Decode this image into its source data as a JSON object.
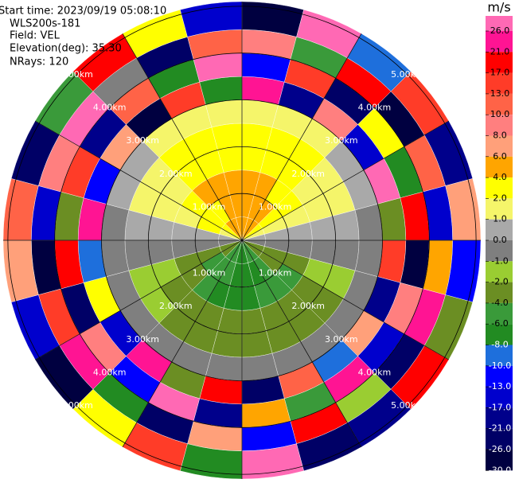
{
  "chart_data": {
    "type": "ppi",
    "annotations": [
      "Start time: 2023/09/19 05:08:10",
      "WLS200s-181",
      "Field: VEL",
      "Elevation(deg): 35.30",
      "NRays: 120"
    ],
    "colorbar_label": "m/s",
    "cticks": [
      {
        "value": 26,
        "label": "26.0"
      },
      {
        "value": 21,
        "label": "21.0"
      },
      {
        "value": 17,
        "label": "17.0"
      },
      {
        "value": 13,
        "label": "13.0"
      },
      {
        "value": 10,
        "label": "10.0"
      },
      {
        "value": 8,
        "label": "8.0"
      },
      {
        "value": 6,
        "label": "6.0"
      },
      {
        "value": 4,
        "label": "4.0"
      },
      {
        "value": 2,
        "label": "2.0"
      },
      {
        "value": 1,
        "label": "1.0"
      },
      {
        "value": 0,
        "label": "0.0"
      },
      {
        "value": -1,
        "label": "-1.0"
      },
      {
        "value": -2,
        "label": "-2.0"
      },
      {
        "value": -4,
        "label": "-4.0"
      },
      {
        "value": -6,
        "label": "-6.0"
      },
      {
        "value": -8,
        "label": "-8.0"
      },
      {
        "value": -10,
        "label": "-10.0"
      },
      {
        "value": -13,
        "label": "-13.0"
      },
      {
        "value": -17,
        "label": "-17.0"
      },
      {
        "value": -21,
        "label": "-21.0"
      },
      {
        "value": -26,
        "label": "-26.0"
      },
      {
        "value": -30,
        "label": "-30.0"
      }
    ],
    "colors": [
      "#ff69b4",
      "#ff1493",
      "#ff0000",
      "#ff3c28",
      "#ff6347",
      "#ff7f7f",
      "#ffa07a",
      "#ffa500",
      "#ffff00",
      "#f5f56a",
      "#a9a9a9",
      "#7f7f7f",
      "#9acd32",
      "#6b8e23",
      "#3a9a3a",
      "#228b22",
      "#1e6fdc",
      "#0000ff",
      "#0000cd",
      "#00008b",
      "#000066",
      "#000040"
    ],
    "rings": [
      {
        "value": 1,
        "label": "1.00km"
      },
      {
        "value": 2,
        "label": "2.00km"
      },
      {
        "value": 3,
        "label": "3.00km"
      },
      {
        "value": 4,
        "label": "4.00km"
      },
      {
        "value": 5,
        "label": "5.00km"
      }
    ],
    "azimuth_edges": [
      0,
      15,
      30,
      45,
      60,
      75,
      90,
      105,
      120,
      135,
      150,
      165,
      180,
      195,
      210,
      225,
      240,
      255,
      270,
      285,
      300,
      315,
      330,
      345,
      360
    ],
    "range_edges": [
      0,
      0.5,
      1,
      1.5,
      2,
      2.5,
      3,
      3.5,
      4,
      4.5,
      5.1
    ],
    "values": [
      [
        5,
        5.2,
        4.8,
        3.1,
        2.9,
        1.5,
        22,
        -12,
        8,
        -27
      ],
      [
        4.6,
        4.5,
        4.4,
        2.8,
        2.7,
        1.4,
        -18,
        14,
        -5,
        28
      ],
      [
        4,
        4.1,
        3.8,
        2.4,
        2.3,
        1.2,
        9,
        -24,
        19,
        -9
      ],
      [
        3,
        3.1,
        2.9,
        1.8,
        1.7,
        0.8,
        -14,
        3,
        -29,
        16
      ],
      [
        1.9,
        1.8,
        1.7,
        1.1,
        1.0,
        0.4,
        27,
        -7,
        11,
        -19
      ],
      [
        0.6,
        0.5,
        0.6,
        0.4,
        0.3,
        -0.2,
        -3,
        18,
        -16,
        7
      ],
      [
        -0.8,
        -0.7,
        -0.9,
        -0.5,
        -0.4,
        -0.3,
        15,
        -28,
        4,
        -11
      ],
      [
        -2.5,
        -2.4,
        -2.6,
        -1.3,
        -1.2,
        -0.5,
        -21,
        9,
        25,
        -4
      ],
      [
        -4,
        -3.9,
        -4.1,
        -2.1,
        -2.2,
        -0.6,
        6,
        -15,
        -26,
        20
      ],
      [
        -5.1,
        -5,
        -5.2,
        -2.8,
        -2.7,
        -0.7,
        -9,
        23,
        -2,
        -18
      ],
      [
        -6,
        -6.1,
        -5.9,
        -3.2,
        -3.1,
        -0.8,
        12,
        -6,
        17,
        -23
      ],
      [
        -6.4,
        -6.5,
        -6.3,
        -3.5,
        -3.4,
        -0.8,
        -25,
        5,
        -12,
        29
      ],
      [
        -6.4,
        -6.3,
        -6.5,
        -3.5,
        -3.3,
        -0.8,
        18,
        -19,
        7,
        -8
      ],
      [
        -6,
        -5.9,
        -6.1,
        -3.2,
        -3.3,
        -0.8,
        -4,
        26,
        -22,
        14
      ],
      [
        -5.1,
        -5.2,
        -5,
        -2.8,
        -2.9,
        -0.7,
        21,
        -11,
        -7,
        3
      ],
      [
        -4,
        -4.1,
        -3.9,
        -2.1,
        -2,
        -0.6,
        -16,
        8,
        24,
        -27
      ],
      [
        -2.5,
        -2.6,
        -2.4,
        -1.3,
        -1.4,
        -0.5,
        2,
        -23,
        13,
        -14
      ],
      [
        -0.8,
        -0.9,
        -0.7,
        -0.5,
        -0.4,
        -0.3,
        -10,
        19,
        -30,
        6
      ],
      [
        0.6,
        0.7,
        0.5,
        0.4,
        0.3,
        -0.2,
        24,
        -3,
        -17,
        11
      ],
      [
        1.9,
        2,
        1.8,
        1.1,
        1.2,
        0.4,
        -13,
        15,
        9,
        -25
      ],
      [
        3,
        2.9,
        3.1,
        1.8,
        1.9,
        0.8,
        7,
        -20,
        28,
        -6
      ],
      [
        4,
        3.9,
        4.1,
        2.4,
        2.5,
        1.2,
        -28,
        10,
        -1,
        19
      ],
      [
        4.6,
        4.7,
        4.5,
        2.8,
        2.9,
        1.4,
        16,
        -8,
        -24,
        2
      ],
      [
        5,
        4.9,
        5.1,
        3.1,
        3,
        1.5,
        -7,
        27,
        12,
        -15
      ]
    ]
  }
}
